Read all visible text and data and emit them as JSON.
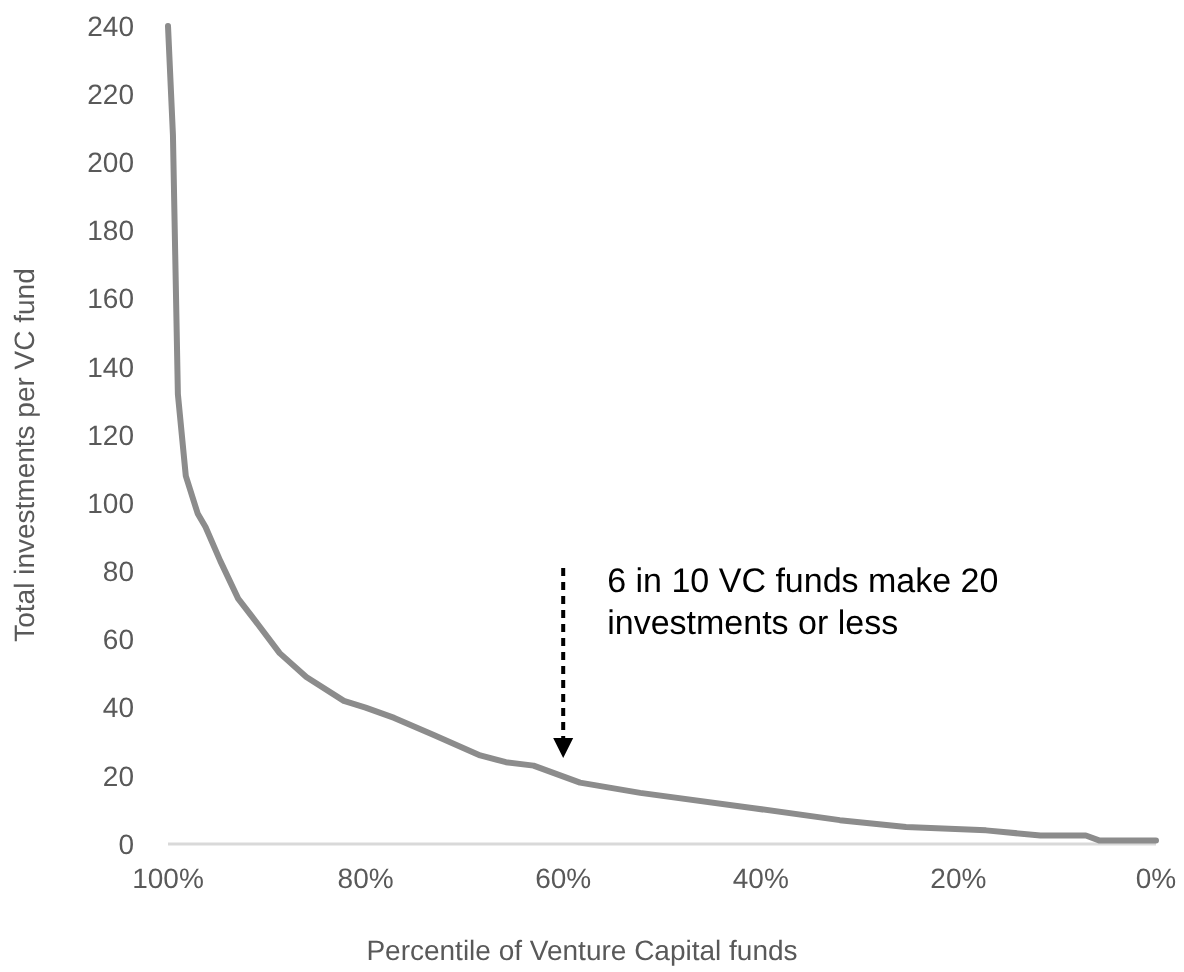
{
  "chart_data": {
    "type": "line",
    "xlabel": "Percentile of Venture Capital funds",
    "ylabel": "Total investments per VC fund",
    "x": [
      100,
      99.5,
      99,
      98.2,
      97,
      96.2,
      94.7,
      92.9,
      91.3,
      88.7,
      86,
      82.2,
      80,
      77.1,
      73.1,
      68.4,
      65.8,
      63,
      58.3,
      52.2,
      40.7,
      32,
      25.3,
      17.2,
      11.7,
      7.1,
      5.7,
      0
    ],
    "series": [
      {
        "color": "#8c8c8c",
        "values": [
          240,
          208,
          132,
          108,
          97,
          93,
          83,
          72,
          66,
          56,
          49,
          42,
          40,
          37,
          32,
          26,
          24,
          23,
          18,
          15,
          10.5,
          7,
          5,
          4,
          2.5,
          2.5,
          1,
          1
        ]
      }
    ],
    "xlim": [
      100,
      0
    ],
    "xticks": [
      {
        "value": 100,
        "label": "100%"
      },
      {
        "value": 80,
        "label": "80%"
      },
      {
        "value": 60,
        "label": "60%"
      },
      {
        "value": 40,
        "label": "40%"
      },
      {
        "value": 20,
        "label": "20%"
      },
      {
        "value": 0,
        "label": "0%"
      }
    ],
    "ylim": [
      0,
      240
    ],
    "yticks": [
      0,
      20,
      40,
      60,
      80,
      100,
      120,
      140,
      160,
      180,
      200,
      220,
      240
    ],
    "grid": false,
    "marker": "none",
    "line_style": "solid",
    "annotations": [
      "6 in 10 VC funds make 20 investments or less"
    ]
  }
}
